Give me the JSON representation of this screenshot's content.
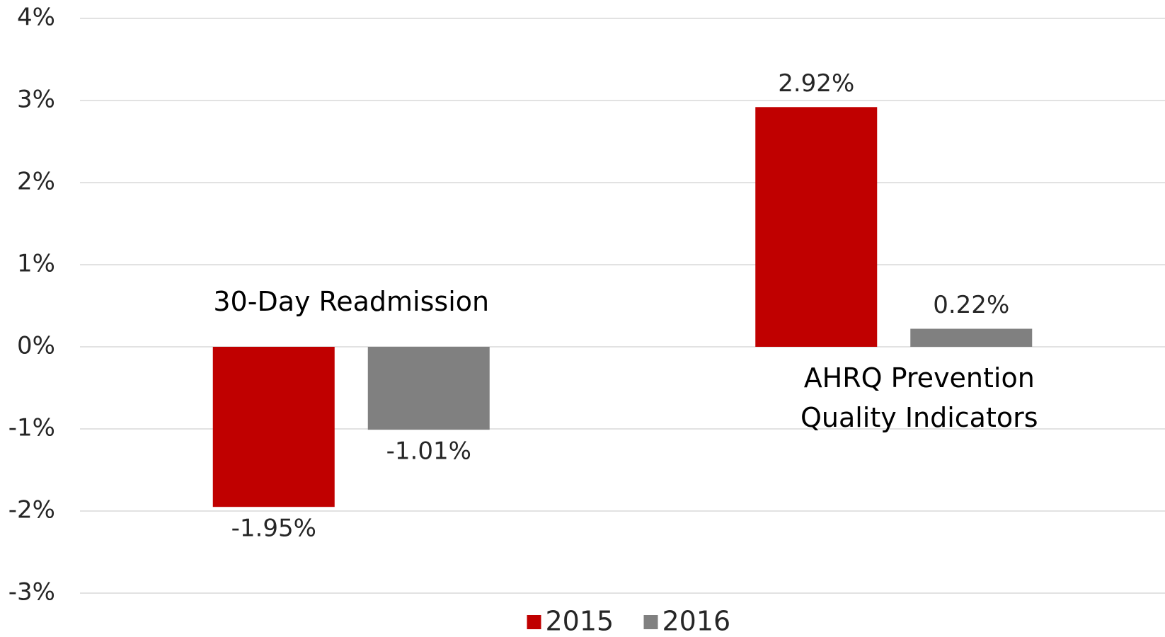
{
  "chart_data": {
    "type": "bar",
    "categories": [
      "30-Day Readmission",
      "AHRQ Prevention Quality Indicators"
    ],
    "series": [
      {
        "name": "2015",
        "color": "#c00000",
        "values": [
          -1.95,
          2.92
        ],
        "value_labels": [
          "-1.95%",
          "2.92%"
        ]
      },
      {
        "name": "2016",
        "color": "#808080",
        "values": [
          -1.01,
          0.22
        ],
        "value_labels": [
          "-1.01%",
          "0.22%"
        ]
      }
    ],
    "ylim": [
      -3,
      4
    ],
    "yticks": [
      {
        "value": -3,
        "label": "-3%"
      },
      {
        "value": -2,
        "label": "-2%"
      },
      {
        "value": -1,
        "label": "-1%"
      },
      {
        "value": 0,
        "label": "0%"
      },
      {
        "value": 1,
        "label": "1%"
      },
      {
        "value": 2,
        "label": "2%"
      },
      {
        "value": 3,
        "label": "3%"
      },
      {
        "value": 4,
        "label": "4%"
      }
    ],
    "grid": true,
    "legend": "bottom"
  }
}
